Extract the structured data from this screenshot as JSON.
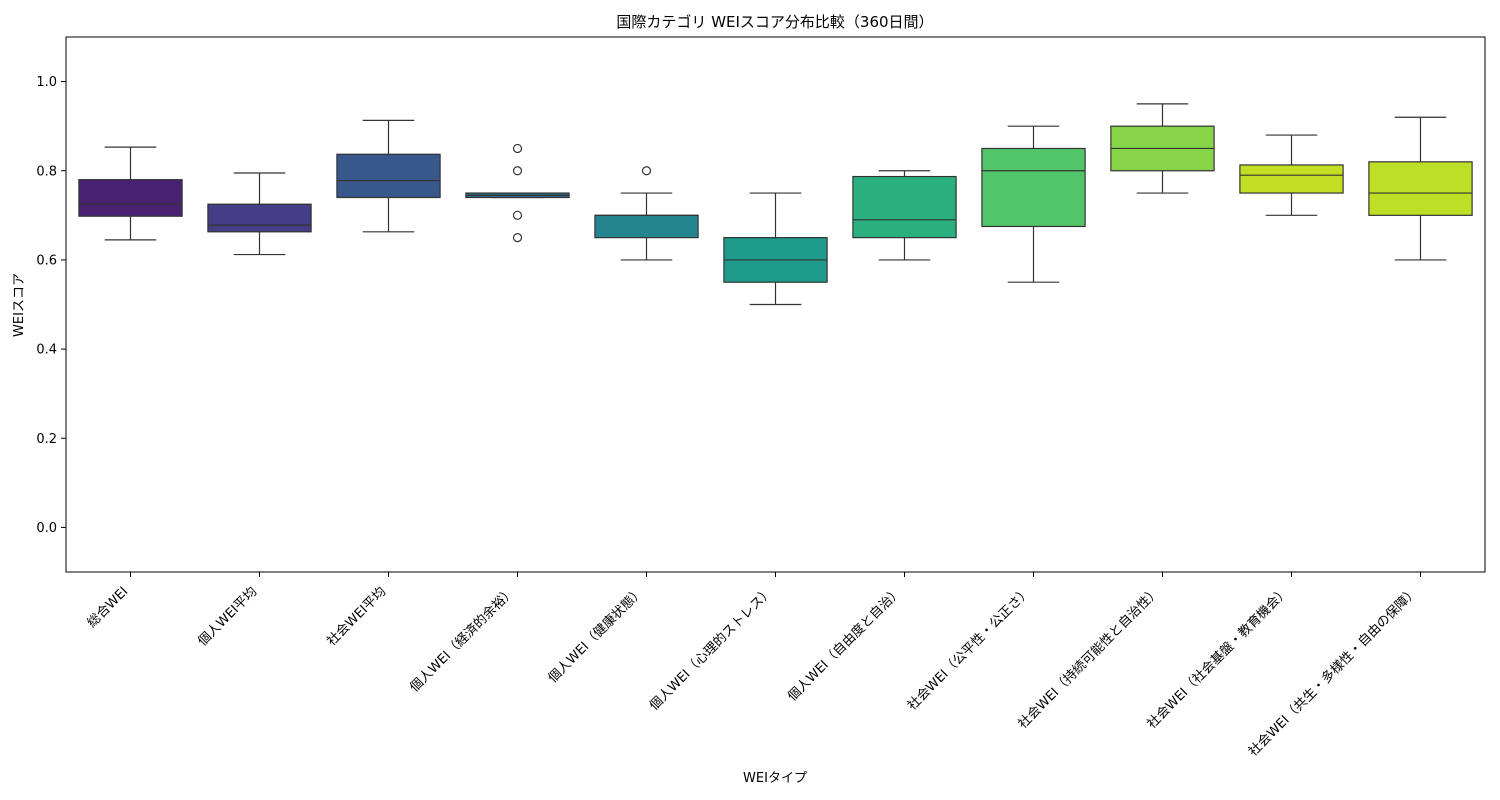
{
  "chart_data": {
    "type": "box",
    "title": "国際カテゴリ WEIスコア分布比較（360日間）",
    "xlabel": "WEIタイプ",
    "ylabel": "WEIスコア",
    "ylim": [
      -0.1,
      1.1
    ],
    "yticks": [
      "0.0",
      "0.2",
      "0.4",
      "0.6",
      "0.8",
      "1.0"
    ],
    "grid": false,
    "categories": [
      "総合WEI",
      "個人WEI平均",
      "社会WEI平均",
      "個人WEI（経済的余裕）",
      "個人WEI（健康状態）",
      "個人WEI（心理的ストレス）",
      "個人WEI（自由度と自治）",
      "社会WEI（公平性・公正さ）",
      "社会WEI（持続可能性と自治性）",
      "社会WEI（社会基盤・教育機会）",
      "社会WEI（共生・多様性・自由の保障）"
    ],
    "boxes": [
      {
        "whislo": 0.645,
        "q1": 0.698,
        "med": 0.725,
        "q3": 0.78,
        "whishi": 0.853,
        "fliers": [],
        "color": "#482173"
      },
      {
        "whislo": 0.612,
        "q1": 0.663,
        "med": 0.678,
        "q3": 0.725,
        "whishi": 0.795,
        "fliers": [],
        "color": "#433e85"
      },
      {
        "whislo": 0.663,
        "q1": 0.74,
        "med": 0.778,
        "q3": 0.837,
        "whishi": 0.913,
        "fliers": [],
        "color": "#38588c"
      },
      {
        "whislo": 0.74,
        "q1": 0.74,
        "med": 0.745,
        "q3": 0.75,
        "whishi": 0.75,
        "fliers": [
          0.85,
          0.8,
          0.7,
          0.65
        ],
        "color": "#2d708e"
      },
      {
        "whislo": 0.6,
        "q1": 0.65,
        "med": 0.7,
        "q3": 0.7,
        "whishi": 0.75,
        "fliers": [
          0.8
        ],
        "color": "#25858e"
      },
      {
        "whislo": 0.5,
        "q1": 0.55,
        "med": 0.6,
        "q3": 0.65,
        "whishi": 0.75,
        "fliers": [],
        "color": "#1e9b8a"
      },
      {
        "whislo": 0.6,
        "q1": 0.65,
        "med": 0.69,
        "q3": 0.787,
        "whishi": 0.8,
        "fliers": [],
        "color": "#2ab07f"
      },
      {
        "whislo": 0.55,
        "q1": 0.675,
        "med": 0.8,
        "q3": 0.85,
        "whishi": 0.9,
        "fliers": [],
        "color": "#52c569"
      },
      {
        "whislo": 0.75,
        "q1": 0.8,
        "med": 0.85,
        "q3": 0.9,
        "whishi": 0.95,
        "fliers": [],
        "color": "#86d549"
      },
      {
        "whislo": 0.7,
        "q1": 0.75,
        "med": 0.79,
        "q3": 0.813,
        "whishi": 0.88,
        "fliers": [],
        "color": "#c2df23"
      },
      {
        "whislo": 0.6,
        "q1": 0.7,
        "med": 0.75,
        "q3": 0.82,
        "whishi": 0.92,
        "fliers": [],
        "color": "#bddf26"
      }
    ]
  }
}
